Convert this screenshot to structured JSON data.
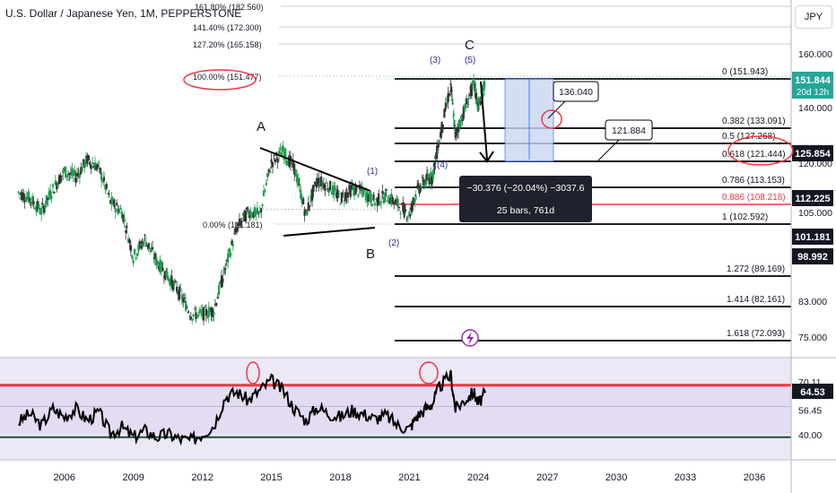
{
  "header": {
    "title": "U.S. Dollar / Japanese Yen, 1M, PEPPERSTONE",
    "currency_button": "JPY"
  },
  "colors": {
    "up": "#26a69a",
    "down": "#ef5350",
    "candle_up": "#1b9e4b",
    "candle_down": "#333333",
    "rsi": "#000000",
    "red": "#f23645",
    "measure": "#2962ff"
  },
  "chart_data": {
    "type": "candlestick",
    "x_ticks": [
      "2006",
      "2009",
      "2012",
      "2015",
      "2018",
      "2021",
      "2024",
      "2027",
      "2030",
      "2033",
      "2036"
    ],
    "price_axis": {
      "ticks": [
        "160.000",
        "140.000",
        "120.000",
        "105.000",
        "93.000",
        "83.000",
        "75.000"
      ],
      "scale": "log"
    },
    "price_series": [
      [
        2004.0,
        110
      ],
      [
        2004.5,
        108
      ],
      [
        2005.0,
        104
      ],
      [
        2005.5,
        111
      ],
      [
        2006.0,
        117
      ],
      [
        2006.5,
        115
      ],
      [
        2007.0,
        121
      ],
      [
        2007.5,
        118
      ],
      [
        2008.0,
        107
      ],
      [
        2008.5,
        104
      ],
      [
        2009.0,
        91
      ],
      [
        2009.5,
        96
      ],
      [
        2010.0,
        90
      ],
      [
        2010.5,
        86
      ],
      [
        2011.0,
        82
      ],
      [
        2011.5,
        77
      ],
      [
        2012.0,
        77
      ],
      [
        2012.5,
        78
      ],
      [
        2013.0,
        88
      ],
      [
        2013.5,
        99
      ],
      [
        2014.0,
        104
      ],
      [
        2014.5,
        103
      ],
      [
        2015.0,
        120
      ],
      [
        2015.5,
        124
      ],
      [
        2016.0,
        118
      ],
      [
        2016.5,
        103
      ],
      [
        2017.0,
        114
      ],
      [
        2017.5,
        112
      ],
      [
        2018.0,
        108
      ],
      [
        2018.5,
        111
      ],
      [
        2019.0,
        110
      ],
      [
        2019.5,
        107
      ],
      [
        2020.0,
        109
      ],
      [
        2020.5,
        106
      ],
      [
        2021.0,
        103
      ],
      [
        2021.3,
        110
      ],
      [
        2021.7,
        114
      ],
      [
        2022.0,
        115
      ],
      [
        2022.3,
        128
      ],
      [
        2022.8,
        150
      ],
      [
        2023.0,
        130
      ],
      [
        2023.4,
        140
      ],
      [
        2023.8,
        151
      ],
      [
        2024.0,
        141
      ],
      [
        2024.3,
        151.8
      ]
    ],
    "fib_levels": [
      {
        "ratio": "0",
        "price": "151.943",
        "label": "0 (151.943)"
      },
      {
        "ratio": "0.382",
        "price": "133.091",
        "label": "0.382 (133.091)"
      },
      {
        "ratio": "0.5",
        "price": "127.268",
        "label": "0.5 (127.268)"
      },
      {
        "ratio": "0.618",
        "price": "121.444",
        "label": "0.618 (121.444)"
      },
      {
        "ratio": "0.786",
        "price": "113.153",
        "label": "0.786 (113.153)"
      },
      {
        "ratio": "0.886",
        "price": "108.218",
        "label": "0.886 (108.218)"
      },
      {
        "ratio": "1",
        "price": "102.592",
        "label": "1 (102.592)"
      },
      {
        "ratio": "1.272",
        "price": "89.169",
        "label": "1.272 (89.169)"
      },
      {
        "ratio": "1.414",
        "price": "82.161",
        "label": "1.414 (82.161)"
      },
      {
        "ratio": "1.618",
        "price": "72.093",
        "label": "1.618 (72.093)"
      }
    ],
    "fib_extensions": [
      {
        "label": "161.80% (182.560)"
      },
      {
        "label": "141.40% (172.300)"
      },
      {
        "label": "127.20% (165.158)"
      },
      {
        "label": "100.00% (151.477)"
      },
      {
        "label": "0.00% (101.181)"
      }
    ],
    "wave_labels": [
      "A",
      "B",
      "C",
      "(1)",
      "(2)",
      "(3)",
      "(4)",
      "(5)"
    ],
    "callouts": [
      "136.040",
      "121.884"
    ],
    "measure_box": {
      "line1": "−30.376 (−20.04%) −3037.6",
      "line2": "25 bars, 761d"
    },
    "price_badges": [
      {
        "text": "151.844",
        "sub": "20d 12h",
        "color": "#26a69a"
      },
      {
        "text": "125.854",
        "color": "#131722"
      },
      {
        "text": "112.225",
        "color": "#131722"
      },
      {
        "text": "101.181",
        "color": "#131722"
      },
      {
        "text": "98.992",
        "color": "#131722"
      }
    ],
    "rsi": {
      "ticks": [
        "70.11",
        "56.45",
        "40.00"
      ],
      "current": "64.53",
      "series": [
        [
          2004.0,
          47
        ],
        [
          2004.5,
          52
        ],
        [
          2005.0,
          45
        ],
        [
          2005.5,
          55
        ],
        [
          2006.0,
          50
        ],
        [
          2006.5,
          55
        ],
        [
          2007.0,
          48
        ],
        [
          2007.5,
          53
        ],
        [
          2008.0,
          40
        ],
        [
          2008.5,
          44
        ],
        [
          2009.0,
          38
        ],
        [
          2009.5,
          42
        ],
        [
          2010.0,
          38
        ],
        [
          2010.5,
          40
        ],
        [
          2011.0,
          37
        ],
        [
          2011.5,
          36
        ],
        [
          2012.0,
          40
        ],
        [
          2012.5,
          45
        ],
        [
          2013.0,
          62
        ],
        [
          2013.5,
          65
        ],
        [
          2014.0,
          60
        ],
        [
          2014.5,
          66
        ],
        [
          2015.0,
          72
        ],
        [
          2015.5,
          66
        ],
        [
          2016.0,
          55
        ],
        [
          2016.5,
          48
        ],
        [
          2017.0,
          56
        ],
        [
          2017.5,
          52
        ],
        [
          2018.0,
          50
        ],
        [
          2018.5,
          54
        ],
        [
          2019.0,
          52
        ],
        [
          2019.5,
          49
        ],
        [
          2020.0,
          51
        ],
        [
          2020.5,
          45
        ],
        [
          2021.0,
          43
        ],
        [
          2021.3,
          50
        ],
        [
          2021.7,
          55
        ],
        [
          2022.0,
          58
        ],
        [
          2022.3,
          68
        ],
        [
          2022.8,
          75
        ],
        [
          2023.0,
          55
        ],
        [
          2023.4,
          60
        ],
        [
          2023.8,
          65
        ],
        [
          2024.0,
          58
        ],
        [
          2024.3,
          64.5
        ]
      ]
    }
  }
}
